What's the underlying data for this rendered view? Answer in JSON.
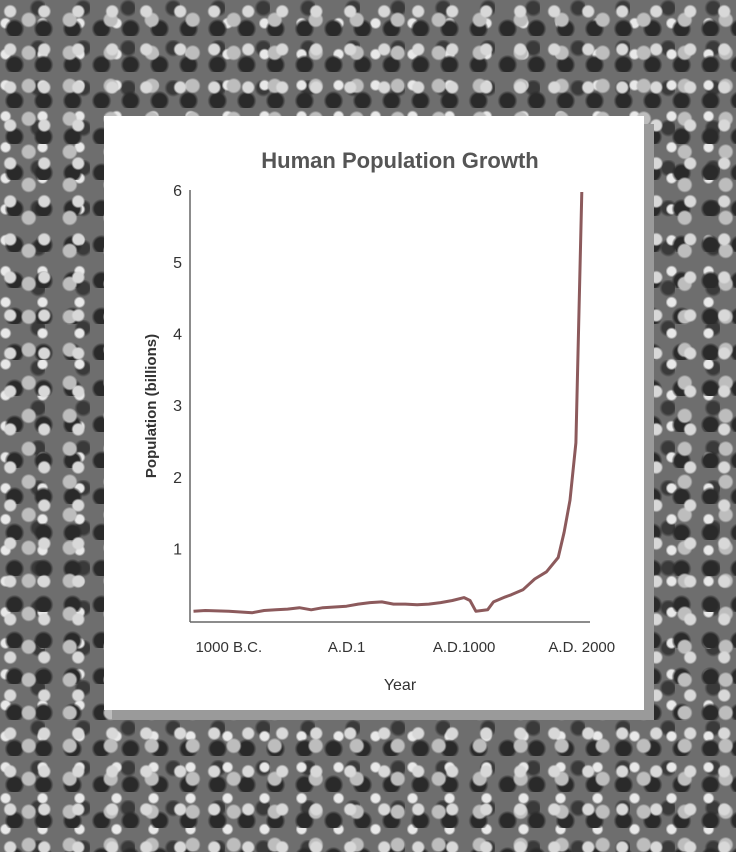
{
  "chart_data": {
    "type": "line",
    "title": "Human Population Growth",
    "xlabel": "Year",
    "ylabel": "Population (billions)",
    "x": [
      -1300,
      -1200,
      -1000,
      -900,
      -800,
      -700,
      -600,
      -500,
      -400,
      -300,
      -200,
      -100,
      0,
      100,
      200,
      300,
      400,
      500,
      600,
      700,
      800,
      900,
      1000,
      1050,
      1100,
      1200,
      1250,
      1350,
      1400,
      1500,
      1600,
      1700,
      1800,
      1850,
      1900,
      1950,
      2000
    ],
    "values": [
      0.15,
      0.16,
      0.15,
      0.14,
      0.13,
      0.16,
      0.17,
      0.18,
      0.2,
      0.17,
      0.2,
      0.21,
      0.22,
      0.25,
      0.27,
      0.28,
      0.25,
      0.25,
      0.24,
      0.25,
      0.27,
      0.3,
      0.34,
      0.3,
      0.15,
      0.17,
      0.28,
      0.35,
      0.38,
      0.45,
      0.6,
      0.7,
      0.9,
      1.25,
      1.7,
      2.5,
      6
    ],
    "color": "#8c5a5c",
    "xlim": [
      -1330,
      2070
    ],
    "ylim": [
      0,
      6
    ],
    "xticks": [
      {
        "value": -1000,
        "label": "1000 B.C."
      },
      {
        "value": 1,
        "label": "A.D.1"
      },
      {
        "value": 1000,
        "label": "A.D.1000"
      },
      {
        "value": 2000,
        "label": "A.D. 2000"
      }
    ],
    "yticks": [
      1,
      2,
      3,
      4,
      5,
      6
    ]
  }
}
